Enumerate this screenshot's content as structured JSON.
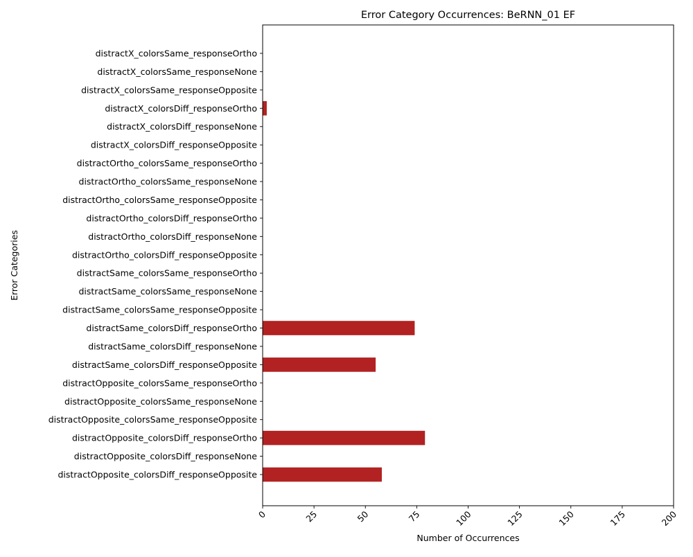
{
  "chart_data": {
    "type": "bar",
    "orientation": "horizontal",
    "title": "Error Category Occurrences: BeRNN_01 EF",
    "xlabel": "Number of Occurrences",
    "ylabel": "Error Categories",
    "xlim": [
      0,
      200
    ],
    "xticks": [
      0,
      25,
      50,
      75,
      100,
      125,
      150,
      175,
      200
    ],
    "grid": false,
    "legend": "none",
    "bar_color": "#b22222",
    "categories": [
      "distractX_colorsSame_responseOrtho",
      "distractX_colorsSame_responseNone",
      "distractX_colorsSame_responseOpposite",
      "distractX_colorsDiff_responseOrtho",
      "distractX_colorsDiff_responseNone",
      "distractX_colorsDiff_responseOpposite",
      "distractOrtho_colorsSame_responseOrtho",
      "distractOrtho_colorsSame_responseNone",
      "distractOrtho_colorsSame_responseOpposite",
      "distractOrtho_colorsDiff_responseOrtho",
      "distractOrtho_colorsDiff_responseNone",
      "distractOrtho_colorsDiff_responseOpposite",
      "distractSame_colorsSame_responseOrtho",
      "distractSame_colorsSame_responseNone",
      "distractSame_colorsSame_responseOpposite",
      "distractSame_colorsDiff_responseOrtho",
      "distractSame_colorsDiff_responseNone",
      "distractSame_colorsDiff_responseOpposite",
      "distractOpposite_colorsSame_responseOrtho",
      "distractOpposite_colorsSame_responseNone",
      "distractOpposite_colorsSame_responseOpposite",
      "distractOpposite_colorsDiff_responseOrtho",
      "distractOpposite_colorsDiff_responseNone",
      "distractOpposite_colorsDiff_responseOpposite"
    ],
    "values": [
      0,
      0,
      0,
      2,
      0,
      0,
      0,
      0,
      0,
      0,
      0,
      0,
      0,
      0,
      0,
      74,
      0,
      55,
      0,
      0,
      0,
      79,
      0,
      58
    ]
  }
}
